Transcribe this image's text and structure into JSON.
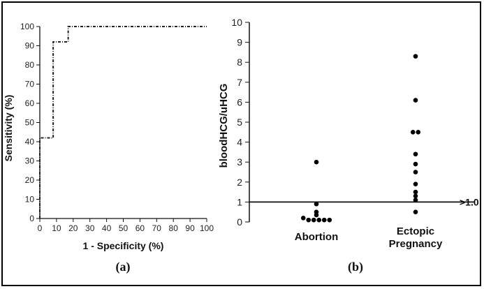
{
  "chart_data": [
    {
      "type": "line",
      "panel_label": "(a)",
      "xlabel": "1 - Specificity (%)",
      "ylabel": "Sensitivity (%)",
      "xlim": [
        0,
        100
      ],
      "ylim": [
        0,
        100
      ],
      "x_ticks": [
        0,
        10,
        20,
        30,
        40,
        50,
        60,
        70,
        80,
        90,
        100
      ],
      "y_ticks": [
        0,
        10,
        20,
        30,
        40,
        50,
        60,
        70,
        80,
        90,
        100
      ],
      "line_style": "dotted-dashed",
      "series": [
        {
          "x": [
            0,
            0,
            8,
            8,
            17,
            17,
            100
          ],
          "y": [
            0,
            42,
            42,
            92,
            92,
            100,
            100
          ]
        }
      ]
    },
    {
      "type": "scatter",
      "panel_label": "(b)",
      "ylabel": "bloodHCG/uHCG",
      "ylim": [
        0,
        10
      ],
      "y_ticks": [
        0,
        1,
        2,
        3,
        4,
        5,
        6,
        7,
        8,
        9,
        10
      ],
      "categories": [
        "Abortion",
        "Ectopic\nPregnancy"
      ],
      "threshold": {
        "value": 1.0,
        "label": ">1.0"
      },
      "series": [
        {
          "category": "Abortion",
          "values": [
            3.0,
            0.9,
            0.5,
            0.35,
            0.2,
            0.1,
            0.1,
            0.1,
            0.1,
            0.1
          ]
        },
        {
          "category": "Ectopic\nPregnancy",
          "values": [
            8.3,
            6.1,
            4.5,
            4.5,
            3.4,
            2.9,
            2.5,
            1.9,
            1.5,
            1.3,
            1.1,
            0.5
          ]
        }
      ]
    }
  ]
}
